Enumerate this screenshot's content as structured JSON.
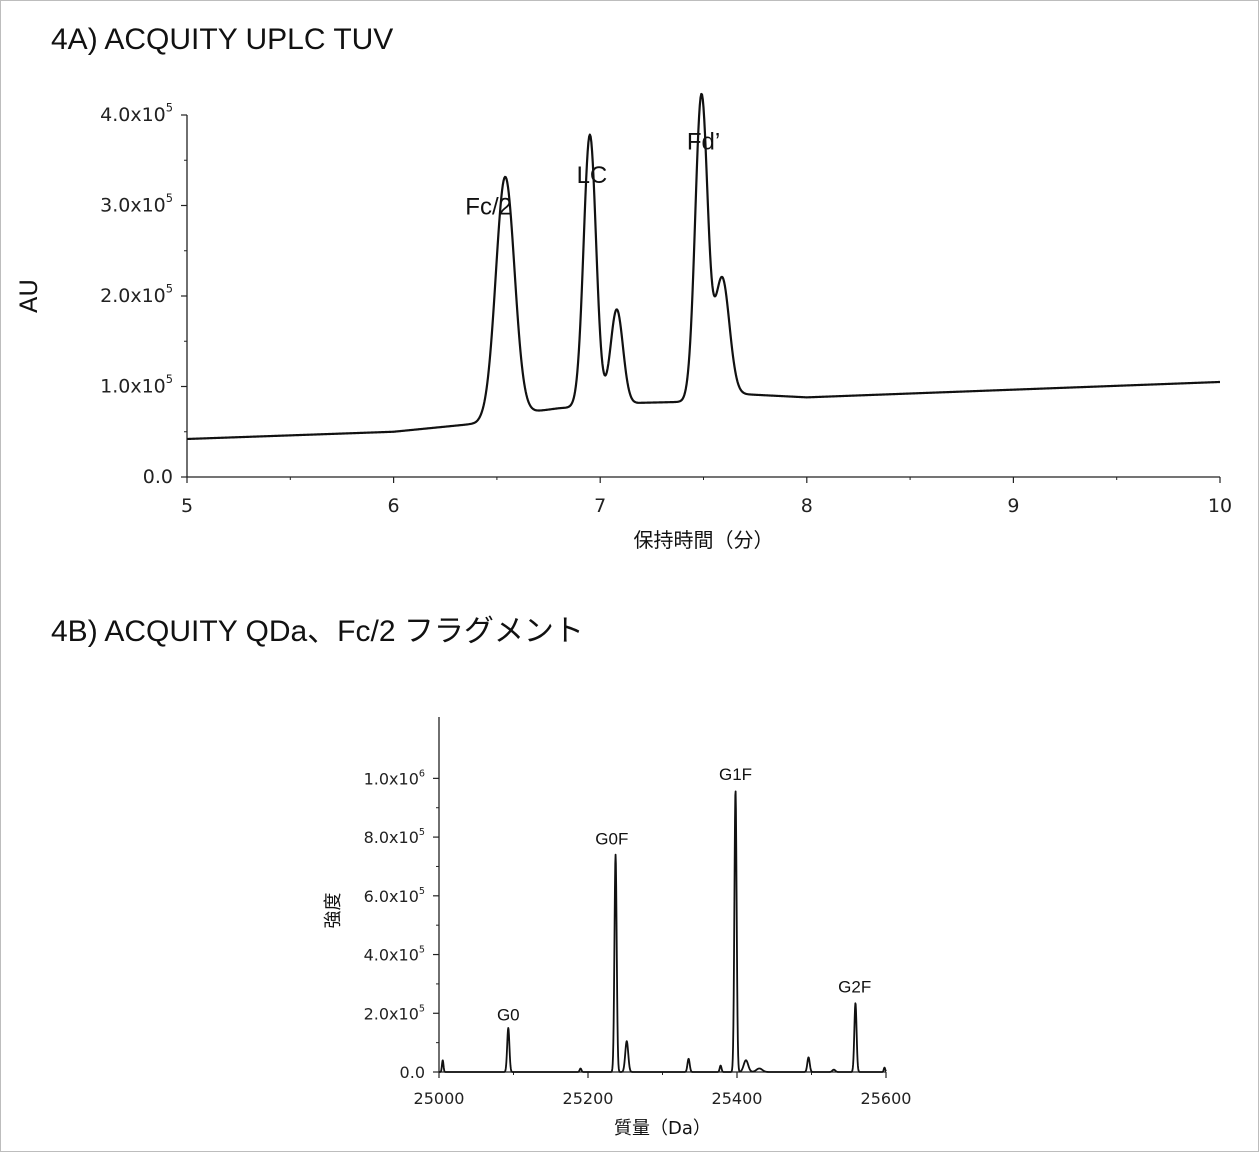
{
  "panels": {
    "a": {
      "title": "4A) ACQUITY UPLC TUV"
    },
    "b": {
      "title": "4B) ACQUITY QDa、Fc/2 フラグメント"
    }
  },
  "colors": {
    "line": "#111111",
    "axis": "#222222",
    "border": "#bdbdbd"
  },
  "chart_data": [
    {
      "type": "line",
      "xlabel": "保持時間（分）",
      "ylabel": "AU",
      "xlim": [
        5,
        10
      ],
      "ylim": [
        0,
        400000
      ],
      "xticks": [
        5,
        6,
        7,
        8,
        9,
        10
      ],
      "yticks": [
        {
          "value": 0,
          "mant": "0.0",
          "exp": ""
        },
        {
          "value": 100000,
          "mant": "1.0x10",
          "exp": "5"
        },
        {
          "value": 200000,
          "mant": "2.0x10",
          "exp": "5"
        },
        {
          "value": 300000,
          "mant": "3.0x10",
          "exp": "5"
        },
        {
          "value": 400000,
          "mant": "4.0x10",
          "exp": "5"
        }
      ],
      "baseline": [
        [
          5.0,
          42000
        ],
        [
          6.0,
          50000
        ],
        [
          6.4,
          59000
        ],
        [
          6.6,
          70000
        ],
        [
          6.8,
          76000
        ],
        [
          7.2,
          82000
        ],
        [
          7.4,
          83000
        ],
        [
          7.65,
          92000
        ],
        [
          8.0,
          88000
        ],
        [
          10.0,
          105000
        ]
      ],
      "peaks": [
        {
          "x": 6.54,
          "height": 265000,
          "width": 0.045
        },
        {
          "x": 6.95,
          "height": 300000,
          "width": 0.03
        },
        {
          "x": 7.08,
          "height": 105000,
          "width": 0.03
        },
        {
          "x": 7.49,
          "height": 335000,
          "width": 0.03
        },
        {
          "x": 7.59,
          "height": 130000,
          "width": 0.035
        }
      ],
      "annotations": [
        {
          "text": "Fc/2",
          "x": 6.46,
          "y": 290000
        },
        {
          "text": "LC",
          "x": 6.96,
          "y": 325000
        },
        {
          "text": "Fd’",
          "x": 7.5,
          "y": 362000
        }
      ],
      "grid": false
    },
    {
      "type": "line",
      "xlabel": "質量（Da）",
      "ylabel": "強度",
      "xlim": [
        25000,
        25600
      ],
      "ylim": [
        0,
        1100000
      ],
      "xticks": [
        25000,
        25200,
        25400,
        25600
      ],
      "yticks": [
        {
          "value": 0,
          "mant": "0.0",
          "exp": ""
        },
        {
          "value": 200000,
          "mant": "2.0x10",
          "exp": "5"
        },
        {
          "value": 400000,
          "mant": "4.0x10",
          "exp": "5"
        },
        {
          "value": 600000,
          "mant": "6.0x10",
          "exp": "5"
        },
        {
          "value": 800000,
          "mant": "8.0x10",
          "exp": "5"
        },
        {
          "value": 1000000,
          "mant": "1.0x10",
          "exp": "6"
        }
      ],
      "peaks": [
        {
          "x": 25005,
          "height": 40000,
          "width": 1.0
        },
        {
          "x": 25093,
          "height": 150000,
          "width": 1.5
        },
        {
          "x": 25190,
          "height": 12000,
          "width": 1.2
        },
        {
          "x": 25237,
          "height": 740000,
          "width": 1.5
        },
        {
          "x": 25252,
          "height": 105000,
          "width": 2.0
        },
        {
          "x": 25335,
          "height": 45000,
          "width": 1.5
        },
        {
          "x": 25378,
          "height": 22000,
          "width": 1.2
        },
        {
          "x": 25398,
          "height": 960000,
          "width": 1.5
        },
        {
          "x": 25412,
          "height": 40000,
          "width": 3.0
        },
        {
          "x": 25430,
          "height": 12000,
          "width": 4.0
        },
        {
          "x": 25496,
          "height": 50000,
          "width": 1.6
        },
        {
          "x": 25530,
          "height": 8000,
          "width": 2.0
        },
        {
          "x": 25559,
          "height": 235000,
          "width": 1.5
        },
        {
          "x": 25598,
          "height": 15000,
          "width": 1.0
        }
      ],
      "annotations": [
        {
          "text": "G0",
          "x": 25093,
          "y": 175000
        },
        {
          "text": "G0F",
          "x": 25232,
          "y": 775000
        },
        {
          "text": "G1F",
          "x": 25398,
          "y": 995000
        },
        {
          "text": "G2F",
          "x": 25558,
          "y": 270000
        }
      ],
      "grid": false
    }
  ]
}
